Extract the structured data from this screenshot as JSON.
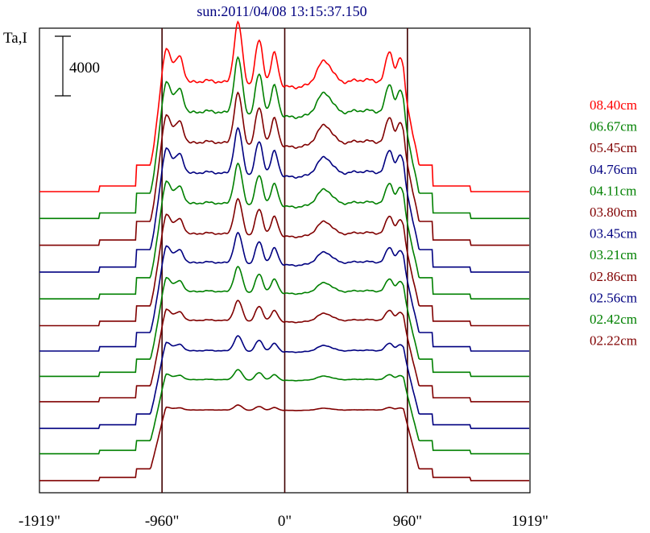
{
  "chart_data": {
    "type": "line",
    "title": "sun:2011/04/08 13:15:37.150",
    "ylabel": "Ta,I",
    "scale_bar_label": "4000",
    "xlim": [
      -1919,
      1919
    ],
    "x_ticks": [
      {
        "value": -1919,
        "label": "-1919\""
      },
      {
        "value": -960,
        "label": "-960\""
      },
      {
        "value": 0,
        "label": "0\""
      },
      {
        "value": 960,
        "label": "960\""
      },
      {
        "value": 1919,
        "label": "1919\""
      }
    ],
    "vertical_lines": [
      -960,
      0,
      960
    ],
    "legend_position": "right",
    "series": [
      {
        "name": "08.40cm",
        "color": "#ff0000",
        "offset": 20000,
        "limb": 1.2
      },
      {
        "name": "06.67cm",
        "color": "#008000",
        "offset": 18200,
        "limb": 1.1
      },
      {
        "name": "05.45cm",
        "color": "#800000",
        "offset": 16400,
        "limb": 1.0
      },
      {
        "name": "04.76cm",
        "color": "#000080",
        "offset": 14600,
        "limb": 0.9
      },
      {
        "name": "04.11cm",
        "color": "#008000",
        "offset": 12800,
        "limb": 0.8
      },
      {
        "name": "03.80cm",
        "color": "#800000",
        "offset": 11000,
        "limb": 0.7
      },
      {
        "name": "03.45cm",
        "color": "#000080",
        "offset": 9300,
        "limb": 0.6
      },
      {
        "name": "03.21cm",
        "color": "#008000",
        "offset": 7600,
        "limb": 0.5
      },
      {
        "name": "02.86cm",
        "color": "#800000",
        "offset": 5900,
        "limb": 0.4
      },
      {
        "name": "02.56cm",
        "color": "#000080",
        "offset": 4100,
        "limb": 0.3
      },
      {
        "name": "02.42cm",
        "color": "#008000",
        "offset": 2400,
        "limb": 0.2
      },
      {
        "name": "02.22cm",
        "color": "#800000",
        "offset": 600,
        "limb": 0.1
      }
    ]
  }
}
